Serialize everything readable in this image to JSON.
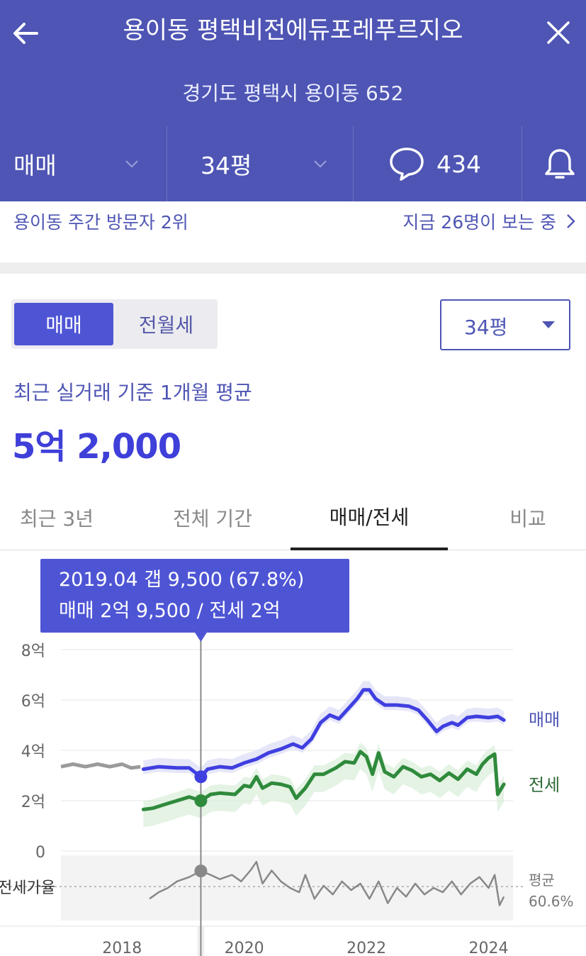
{
  "header": {
    "title": "용이동 평택비전에듀포레푸르지오",
    "address": "경기도 평택시 용이동 652",
    "back_icon": "arrow-left-icon",
    "close_icon": "close-icon"
  },
  "subbar": {
    "deal_type": "매매",
    "size": "34평",
    "comment_count": "434",
    "comment_icon": "speech-bubble-icon",
    "alarm_icon": "bell-icon"
  },
  "visitor": {
    "rank_text": "용이동 주간 방문자 2위",
    "live_text": "지금 26명이 보는 중"
  },
  "segment": {
    "option_a": "매매",
    "option_b": "전월세",
    "selected": "매매"
  },
  "size_select": {
    "value": "34평"
  },
  "average": {
    "label": "최근 실거래 기준 1개월 평균",
    "value": "5억 2,000"
  },
  "tabs": [
    {
      "label": "최근 3년",
      "active": false
    },
    {
      "label": "전체 기간",
      "active": false
    },
    {
      "label": "매매/전세",
      "active": true
    },
    {
      "label": "비교",
      "active": false
    }
  ],
  "tooltip": {
    "line1": "2019.04  갭 9,500 (67.8%)",
    "line2": "매매 2억 9,500 / 전세 2억"
  },
  "colors": {
    "brand": "#4e55b4",
    "accent": "#3f3fd9",
    "sale": "#3f3fe0",
    "jeonse": "#2f8a3c",
    "history": "#9a9a9a"
  },
  "chart_data": {
    "type": "line",
    "y_unit": "억",
    "ylim": [
      0,
      8
    ],
    "y_ticks": [
      "8억",
      "6억",
      "4억",
      "2억",
      "0"
    ],
    "x_ticks": [
      "2018",
      "2020",
      "2022",
      "2024"
    ],
    "xlim": [
      2017.0,
      2024.4
    ],
    "selected_x": 2019.29,
    "series": [
      {
        "name": "매매",
        "color": "#3f3fe0",
        "points": [
          [
            2018.35,
            3.25
          ],
          [
            2018.6,
            3.35
          ],
          [
            2018.9,
            3.3
          ],
          [
            2019.1,
            3.3
          ],
          [
            2019.29,
            2.95
          ],
          [
            2019.4,
            3.25
          ],
          [
            2019.6,
            3.35
          ],
          [
            2019.8,
            3.3
          ],
          [
            2020.0,
            3.5
          ],
          [
            2020.2,
            3.65
          ],
          [
            2020.4,
            3.9
          ],
          [
            2020.6,
            4.05
          ],
          [
            2020.8,
            4.25
          ],
          [
            2020.95,
            4.1
          ],
          [
            2021.1,
            4.45
          ],
          [
            2021.25,
            5.1
          ],
          [
            2021.4,
            5.4
          ],
          [
            2021.55,
            5.25
          ],
          [
            2021.7,
            5.65
          ],
          [
            2021.85,
            6.05
          ],
          [
            2021.95,
            6.4
          ],
          [
            2022.05,
            6.4
          ],
          [
            2022.15,
            6.05
          ],
          [
            2022.3,
            5.8
          ],
          [
            2022.5,
            5.8
          ],
          [
            2022.7,
            5.75
          ],
          [
            2022.85,
            5.6
          ],
          [
            2023.0,
            5.2
          ],
          [
            2023.15,
            4.75
          ],
          [
            2023.25,
            4.95
          ],
          [
            2023.4,
            5.1
          ],
          [
            2023.5,
            5.0
          ],
          [
            2023.65,
            5.3
          ],
          [
            2023.8,
            5.35
          ],
          [
            2024.0,
            5.3
          ],
          [
            2024.15,
            5.35
          ],
          [
            2024.25,
            5.2
          ]
        ]
      },
      {
        "name": "전세",
        "color": "#2f8a3c",
        "points": [
          [
            2018.35,
            1.65
          ],
          [
            2018.5,
            1.7
          ],
          [
            2018.7,
            1.85
          ],
          [
            2018.9,
            2.0
          ],
          [
            2019.1,
            2.15
          ],
          [
            2019.29,
            2.0
          ],
          [
            2019.45,
            2.25
          ],
          [
            2019.6,
            2.3
          ],
          [
            2019.85,
            2.25
          ],
          [
            2020.0,
            2.6
          ],
          [
            2020.1,
            2.55
          ],
          [
            2020.2,
            2.95
          ],
          [
            2020.3,
            2.5
          ],
          [
            2020.45,
            2.7
          ],
          [
            2020.6,
            2.65
          ],
          [
            2020.75,
            2.55
          ],
          [
            2020.85,
            2.1
          ],
          [
            2021.0,
            2.5
          ],
          [
            2021.15,
            3.05
          ],
          [
            2021.3,
            3.05
          ],
          [
            2021.5,
            3.3
          ],
          [
            2021.65,
            3.55
          ],
          [
            2021.8,
            3.5
          ],
          [
            2021.9,
            3.95
          ],
          [
            2022.0,
            3.75
          ],
          [
            2022.1,
            3.05
          ],
          [
            2022.2,
            3.9
          ],
          [
            2022.3,
            3.15
          ],
          [
            2022.45,
            2.95
          ],
          [
            2022.6,
            3.35
          ],
          [
            2022.75,
            3.2
          ],
          [
            2022.9,
            2.95
          ],
          [
            2023.05,
            3.05
          ],
          [
            2023.2,
            2.8
          ],
          [
            2023.35,
            3.1
          ],
          [
            2023.5,
            2.85
          ],
          [
            2023.65,
            3.25
          ],
          [
            2023.8,
            3.05
          ],
          [
            2023.9,
            3.45
          ],
          [
            2024.0,
            3.7
          ],
          [
            2024.1,
            3.85
          ],
          [
            2024.15,
            2.25
          ],
          [
            2024.25,
            2.65
          ]
        ]
      }
    ],
    "history": {
      "color": "#9a9a9a",
      "points": [
        [
          2017.0,
          3.35
        ],
        [
          2017.2,
          3.45
        ],
        [
          2017.4,
          3.35
        ],
        [
          2017.6,
          3.45
        ],
        [
          2017.8,
          3.35
        ],
        [
          2018.0,
          3.45
        ],
        [
          2018.15,
          3.3
        ],
        [
          2018.3,
          3.35
        ]
      ]
    },
    "sub_chart": {
      "label": "전세가율",
      "avg_label": "평균",
      "avg_value": "60.6%",
      "avg": 60.6,
      "ylim": [
        45,
        75
      ],
      "selected_value": 67.8,
      "points": [
        [
          2018.45,
          55
        ],
        [
          2018.6,
          58
        ],
        [
          2018.75,
          60
        ],
        [
          2018.9,
          63
        ],
        [
          2019.1,
          65
        ],
        [
          2019.29,
          67.8
        ],
        [
          2019.45,
          66
        ],
        [
          2019.6,
          64
        ],
        [
          2019.8,
          66
        ],
        [
          2019.95,
          63
        ],
        [
          2020.1,
          68
        ],
        [
          2020.2,
          72
        ],
        [
          2020.3,
          62
        ],
        [
          2020.45,
          68
        ],
        [
          2020.6,
          63
        ],
        [
          2020.75,
          60
        ],
        [
          2020.9,
          58
        ],
        [
          2021.0,
          66
        ],
        [
          2021.15,
          55
        ],
        [
          2021.3,
          61
        ],
        [
          2021.45,
          57
        ],
        [
          2021.6,
          63
        ],
        [
          2021.75,
          59
        ],
        [
          2021.9,
          62
        ],
        [
          2022.05,
          55
        ],
        [
          2022.2,
          63
        ],
        [
          2022.35,
          53
        ],
        [
          2022.5,
          60
        ],
        [
          2022.65,
          56
        ],
        [
          2022.8,
          62
        ],
        [
          2022.95,
          57
        ],
        [
          2023.1,
          60
        ],
        [
          2023.25,
          58
        ],
        [
          2023.4,
          63
        ],
        [
          2023.55,
          57
        ],
        [
          2023.7,
          62
        ],
        [
          2023.85,
          65
        ],
        [
          2024.0,
          60
        ],
        [
          2024.1,
          66
        ],
        [
          2024.18,
          52
        ],
        [
          2024.25,
          56
        ]
      ]
    }
  }
}
